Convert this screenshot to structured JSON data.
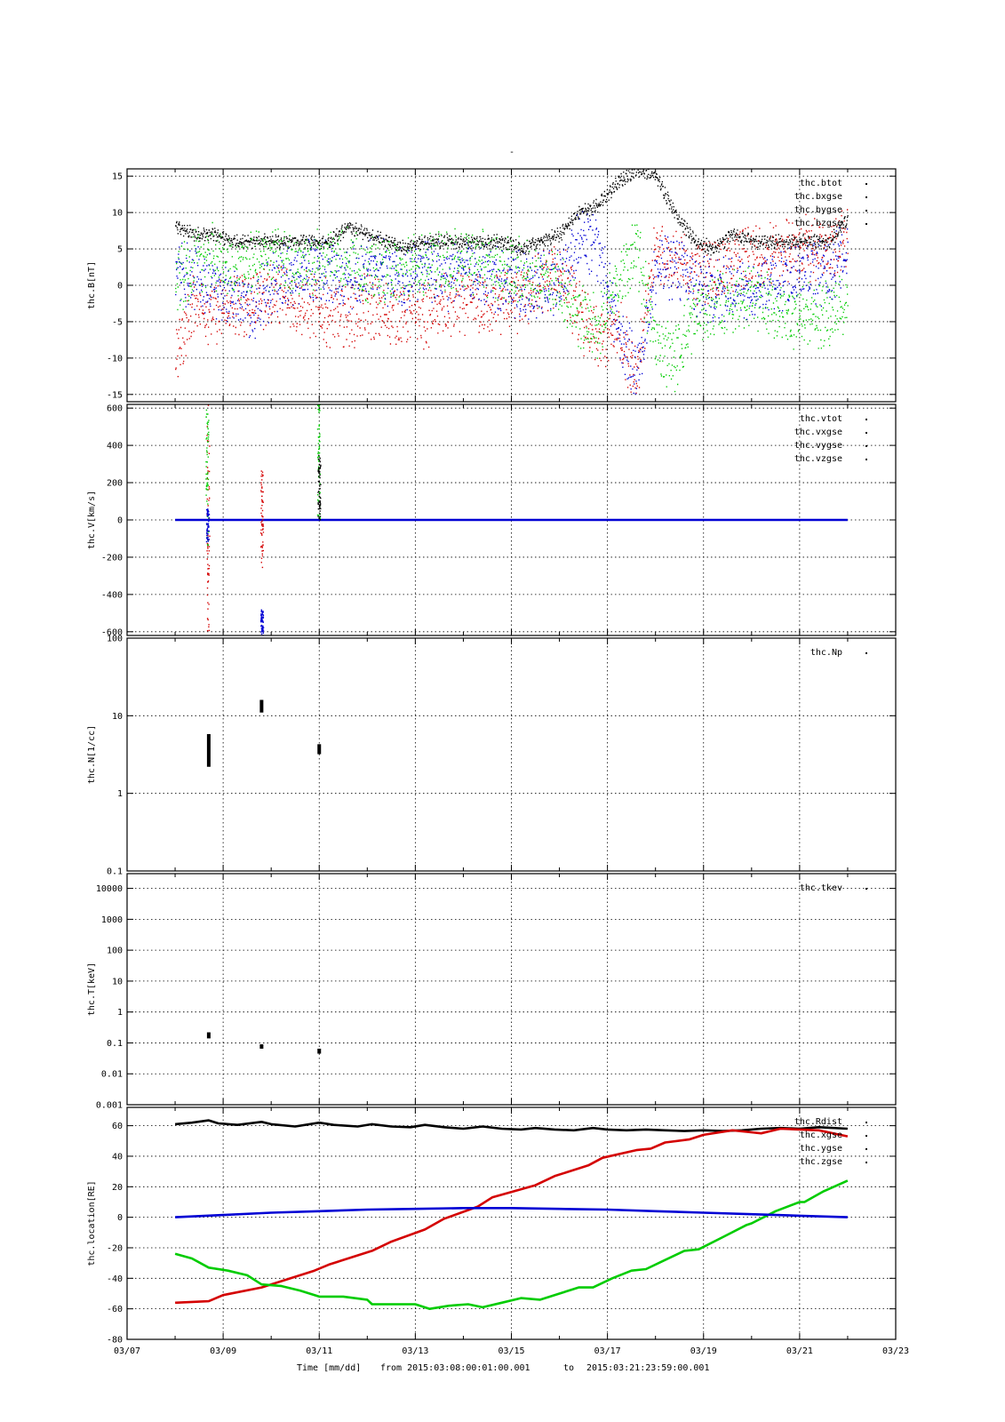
{
  "chart_data": {
    "type": "multi-panel-timeseries",
    "title": "-",
    "time_axis": {
      "ticks": [
        "03/07",
        "03/09",
        "03/11",
        "03/13",
        "03/15",
        "03/17",
        "03/19",
        "03/21",
        "03/23"
      ],
      "range_days": [
        7,
        23
      ],
      "xlabel": "Time [mm/dd]",
      "from_label": "from 2015:03:08:00:01:00.001",
      "to_label": "to",
      "end_label": "2015:03:21:23:59:00.001"
    },
    "colors": {
      "black": "#000000",
      "red": "#d40000",
      "green": "#00cc00",
      "blue": "#0000d4"
    },
    "panels": [
      {
        "id": "B",
        "ylabel": "thc.B[nT]",
        "scale": "linear",
        "ylim": [
          -16,
          16
        ],
        "ticks": [
          15,
          10,
          5,
          0,
          -5,
          -10,
          -15
        ],
        "tick_labels": [
          "15",
          "10",
          "5",
          "0",
          "-5",
          "-10",
          "-15"
        ],
        "legend": [
          "thc.btot",
          "thc.bxgse",
          "thc.bygse",
          "thc.bzgse"
        ],
        "series": [
          {
            "name": "thc.btot",
            "color": "black",
            "style": "band",
            "x": [
              8.0,
              8.4,
              8.8,
              9.2,
              9.6,
              10.0,
              10.4,
              10.8,
              11.2,
              11.6,
              12.0,
              12.4,
              12.8,
              13.2,
              13.6,
              14.0,
              14.4,
              14.8,
              15.2,
              15.6,
              16.0,
              16.4,
              16.8,
              17.2,
              17.6,
              18.0,
              18.4,
              18.8,
              19.2,
              19.6,
              20.0,
              20.4,
              20.8,
              21.2,
              21.6,
              22.0
            ],
            "y": [
              8,
              7,
              7,
              6,
              6,
              6,
              6,
              6,
              6,
              8,
              7,
              6,
              5,
              6,
              6,
              6,
              6,
              6,
              5,
              6,
              7,
              10,
              11,
              14,
              16,
              15,
              10,
              6,
              5,
              7,
              6,
              6,
              6,
              6,
              6,
              9
            ],
            "spread": 1.2
          },
          {
            "name": "thc.bxgse",
            "color": "red",
            "style": "band",
            "x": [
              8.0,
              8.4,
              8.8,
              9.2,
              9.6,
              10.0,
              10.4,
              10.8,
              11.2,
              11.6,
              12.0,
              12.4,
              12.8,
              13.2,
              13.6,
              14.0,
              14.4,
              14.8,
              15.2,
              15.6,
              16.0,
              16.4,
              16.8,
              17.2,
              17.6,
              18.0,
              18.4,
              18.8,
              19.2,
              19.6,
              20.0,
              20.4,
              20.8,
              21.2,
              21.6,
              22.0
            ],
            "y": [
              -10,
              -2,
              -4,
              -3,
              -2,
              -1,
              -2,
              -3,
              -4,
              -4,
              -3,
              -4,
              -4,
              -4,
              -3,
              -2,
              -3,
              -2,
              -2,
              0,
              2,
              -4,
              -8,
              -6,
              -12,
              5,
              3,
              2,
              2,
              3,
              4,
              4,
              5,
              5,
              5,
              6
            ],
            "spread": 3.5
          },
          {
            "name": "thc.bygse",
            "color": "green",
            "style": "band",
            "x": [
              8.0,
              8.4,
              8.8,
              9.2,
              9.6,
              10.0,
              10.4,
              10.8,
              11.2,
              11.6,
              12.0,
              12.4,
              12.8,
              13.2,
              13.6,
              14.0,
              14.4,
              14.8,
              15.2,
              15.6,
              16.0,
              16.4,
              16.8,
              17.2,
              17.6,
              18.0,
              18.4,
              18.8,
              19.2,
              19.6,
              20.0,
              20.4,
              20.8,
              21.2,
              21.6,
              22.0
            ],
            "y": [
              0,
              3,
              4,
              2,
              3,
              4,
              3,
              3,
              4,
              4,
              2,
              2,
              2,
              3,
              3,
              4,
              3,
              2,
              2,
              1,
              0,
              -4,
              -6,
              0,
              5,
              -8,
              -10,
              -4,
              -3,
              -2,
              -2,
              -3,
              -4,
              -4,
              -4,
              -2
            ],
            "spread": 3.5
          },
          {
            "name": "thc.bzgse",
            "color": "blue",
            "style": "band",
            "x": [
              8.0,
              8.4,
              8.8,
              9.2,
              9.6,
              10.0,
              10.4,
              10.8,
              11.2,
              11.6,
              12.0,
              12.4,
              12.8,
              13.2,
              13.6,
              14.0,
              14.4,
              14.8,
              15.2,
              15.6,
              16.0,
              16.4,
              16.8,
              17.2,
              17.6,
              18.0,
              18.4,
              18.8,
              19.2,
              19.6,
              20.0,
              20.4,
              20.8,
              21.2,
              21.6,
              22.0
            ],
            "y": [
              2,
              1,
              0,
              -2,
              -3,
              0,
              1,
              2,
              2,
              1,
              2,
              2,
              1,
              2,
              1,
              2,
              1,
              1,
              0,
              0,
              1,
              6,
              5,
              -6,
              -12,
              2,
              3,
              0,
              -1,
              0,
              0,
              1,
              1,
              2,
              2,
              5
            ],
            "spread": 3.5
          }
        ]
      },
      {
        "id": "V",
        "ylabel": "thc.V[km/s]",
        "scale": "linear",
        "ylim": [
          -620,
          620
        ],
        "ticks": [
          600,
          400,
          200,
          0,
          -200,
          -400,
          -600
        ],
        "tick_labels": [
          "600",
          "400",
          "200",
          "0",
          "-200",
          "-400",
          "-600"
        ],
        "legend": [
          "thc.vtot",
          "thc.vxgse",
          "thc.vygse",
          "thc.vzgse"
        ],
        "series": [
          {
            "name": "thc.vzgse",
            "color": "blue",
            "style": "line",
            "x": [
              8.0,
              22.0
            ],
            "y": [
              0,
              0
            ]
          }
        ],
        "spikes": [
          {
            "x": 8.68,
            "y0": -620,
            "y1": 620,
            "color": "red"
          },
          {
            "x": 8.66,
            "y0": -150,
            "y1": 600,
            "color": "green"
          },
          {
            "x": 8.67,
            "y0": -120,
            "y1": 60,
            "color": "blue"
          },
          {
            "x": 9.8,
            "y0": -620,
            "y1": -480,
            "color": "blue"
          },
          {
            "x": 9.8,
            "y0": -260,
            "y1": 280,
            "color": "red"
          },
          {
            "x": 10.98,
            "y0": 0,
            "y1": 620,
            "color": "green"
          },
          {
            "x": 10.99,
            "y0": 0,
            "y1": 350,
            "color": "black"
          }
        ]
      },
      {
        "id": "N",
        "ylabel": "thc.N[1/cc]",
        "scale": "log",
        "ylim": [
          0.1,
          100
        ],
        "ticks": [
          100,
          10,
          1,
          0.1
        ],
        "tick_labels": [
          "100",
          "10",
          "1",
          "0.1"
        ],
        "legend": [
          "thc.Np"
        ],
        "clusters": [
          {
            "x": 8.7,
            "y0": 2.2,
            "y1": 5.8
          },
          {
            "x": 9.8,
            "y0": 11,
            "y1": 16
          },
          {
            "x": 11.0,
            "y0": 3.2,
            "y1": 4.3
          }
        ]
      },
      {
        "id": "T",
        "ylabel": "thc.T[keV]",
        "scale": "log",
        "ylim": [
          0.001,
          30000
        ],
        "ticks": [
          10000,
          1000,
          100,
          10,
          1,
          0.1,
          0.01,
          0.001
        ],
        "tick_labels": [
          "10000",
          "1000",
          "100",
          "10",
          "1",
          "0.1",
          "0.01",
          "0.001"
        ],
        "legend": [
          "thc.tkev"
        ],
        "clusters": [
          {
            "x": 8.7,
            "y0": 0.14,
            "y1": 0.22
          },
          {
            "x": 9.8,
            "y0": 0.065,
            "y1": 0.09
          },
          {
            "x": 11.0,
            "y0": 0.045,
            "y1": 0.065
          }
        ]
      },
      {
        "id": "loc",
        "ylabel": "thc.location[RE]",
        "scale": "linear",
        "ylim": [
          -80,
          72
        ],
        "ticks": [
          60,
          40,
          20,
          0,
          -20,
          -40,
          -60,
          -80
        ],
        "tick_labels": [
          "60",
          "40",
          "20",
          "0",
          "-20",
          "-40",
          "-60",
          "-80"
        ],
        "legend": [
          "thc.Rdist",
          "thc.xgse",
          "thc.ygse",
          "thc.zgse"
        ],
        "series": [
          {
            "name": "thc.Rdist",
            "color": "black",
            "style": "line",
            "x": [
              8.0,
              8.35,
              8.7,
              8.9,
              9.3,
              9.8,
              10.0,
              10.5,
              11.0,
              11.3,
              11.8,
              12.1,
              12.5,
              12.9,
              13.2,
              13.6,
              14.0,
              14.4,
              14.8,
              15.2,
              15.5,
              15.9,
              16.3,
              16.7,
              17.0,
              17.4,
              17.8,
              18.2,
              18.6,
              19.0,
              19.4,
              19.8,
              20.2,
              20.6,
              21.0,
              21.4,
              22.0
            ],
            "y": [
              61,
              62,
              63.5,
              61.5,
              60.5,
              62.5,
              61,
              59.5,
              62,
              60.5,
              59.5,
              61,
              59.5,
              59,
              60.5,
              59,
              58,
              59.5,
              58,
              57.5,
              58.5,
              57.5,
              57,
              58.5,
              57.5,
              57,
              57.5,
              57,
              56.5,
              57,
              56.5,
              57,
              58,
              58.5,
              58,
              59,
              58
            ]
          },
          {
            "name": "thc.xgse",
            "color": "red",
            "style": "line",
            "x": [
              8.0,
              8.7,
              9.0,
              9.8,
              10.2,
              10.9,
              11.2,
              12.1,
              12.5,
              13.2,
              13.6,
              14.3,
              14.6,
              15.5,
              15.9,
              16.6,
              16.9,
              17.6,
              17.9,
              18.2,
              18.7,
              19.0,
              19.6,
              19.9,
              20.2,
              20.6,
              21.0,
              21.4,
              22.0
            ],
            "y": [
              -56,
              -55,
              -51,
              -46,
              -42,
              -35,
              -31,
              -22,
              -16,
              -8,
              -1,
              7,
              13,
              21,
              27,
              34,
              39,
              44,
              45,
              49,
              51,
              54,
              57,
              56,
              55,
              58,
              57.5,
              57,
              53
            ]
          },
          {
            "name": "thc.ygse",
            "color": "green",
            "style": "line",
            "x": [
              8.0,
              8.35,
              8.7,
              9.1,
              9.5,
              9.8,
              10.2,
              10.6,
              11.0,
              11.5,
              12.0,
              12.1,
              12.6,
              13.0,
              13.3,
              13.7,
              14.1,
              14.4,
              14.8,
              15.2,
              15.6,
              16.0,
              16.4,
              16.7,
              17.1,
              17.5,
              17.8,
              18.2,
              18.6,
              18.9,
              19.4,
              19.9,
              20.0,
              20.5,
              21.0,
              21.1,
              21.5,
              22.0
            ],
            "y": [
              -24,
              -27,
              -33,
              -35,
              -38,
              -44,
              -45,
              -48,
              -52,
              -52,
              -54,
              -57,
              -57,
              -57,
              -60,
              -58,
              -57,
              -59,
              -56,
              -53,
              -54,
              -50,
              -46,
              -46,
              -40,
              -35,
              -34,
              -28,
              -22,
              -21,
              -13,
              -5,
              -4,
              4,
              10,
              10,
              17,
              24
            ]
          },
          {
            "name": "thc.zgse",
            "color": "blue",
            "style": "line",
            "x": [
              8.0,
              9.0,
              10.0,
              11.0,
              12.0,
              13.0,
              14.0,
              15.0,
              16.0,
              17.0,
              18.0,
              19.0,
              20.0,
              21.0,
              22.0
            ],
            "y": [
              0,
              1.5,
              3,
              4,
              5,
              5.5,
              6,
              6,
              5.5,
              5,
              4,
              3,
              2,
              1,
              0
            ]
          }
        ]
      }
    ]
  }
}
